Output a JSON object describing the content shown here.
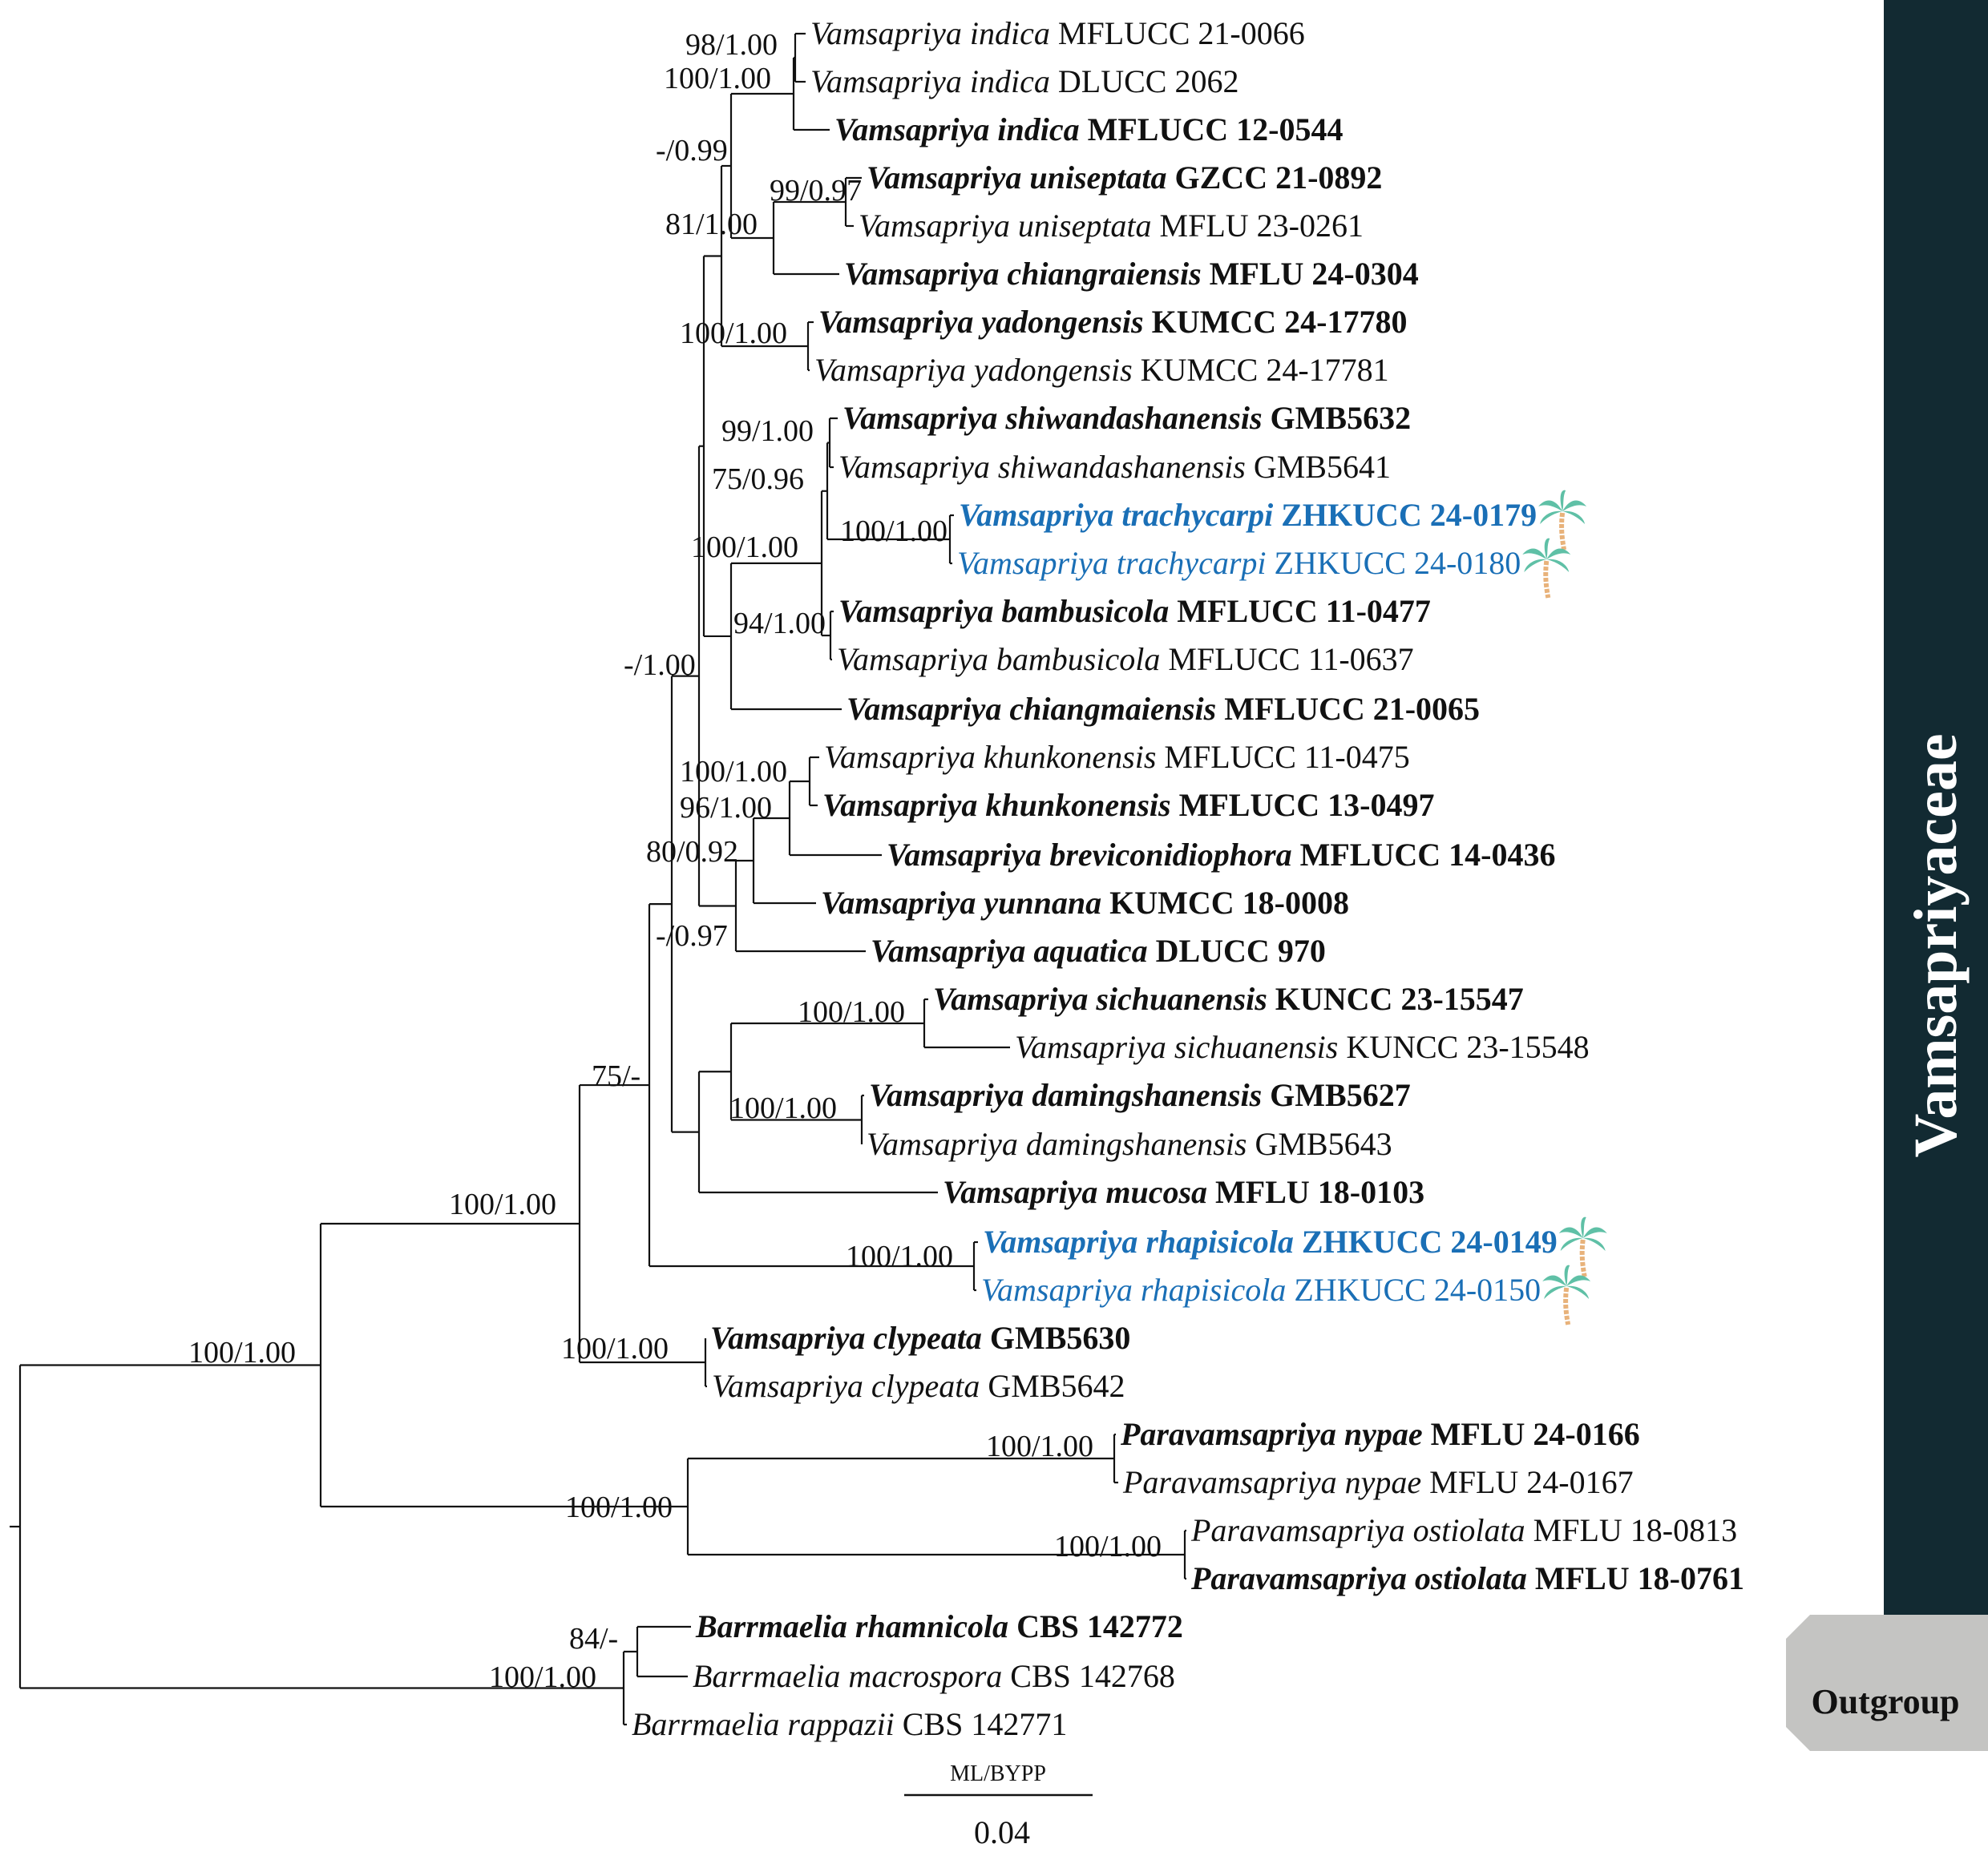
{
  "colors": {
    "branch": "#111111",
    "highlight": "#1a6fb6",
    "clade_bar": "#122a32",
    "outgroup_box": "#c4c4c2",
    "palm_leaf": "#5fc0a6",
    "palm_trunk": "#e8b27a"
  },
  "clades": {
    "family_label": "Vamsapriyaceae",
    "outgroup_label": "Outgroup"
  },
  "scale": {
    "title": "ML/BYPP",
    "value": "0.04"
  },
  "taxa": [
    {
      "species": "Vamsapriya indica",
      "code": "MFLUCC 21-0066",
      "bold": false,
      "highlight": false,
      "palm": false
    },
    {
      "species": "Vamsapriya indica",
      "code": "DLUCC 2062",
      "bold": false,
      "highlight": false,
      "palm": false
    },
    {
      "species": "Vamsapriya indica",
      "code": "MFLUCC 12-0544",
      "bold": true,
      "highlight": false,
      "palm": false
    },
    {
      "species": "Vamsapriya uniseptata",
      "code": "GZCC 21-0892",
      "bold": true,
      "highlight": false,
      "palm": false
    },
    {
      "species": "Vamsapriya uniseptata",
      "code": "MFLU 23-0261",
      "bold": false,
      "highlight": false,
      "palm": false
    },
    {
      "species": "Vamsapriya chiangraiensis",
      "code": "MFLU 24-0304",
      "bold": true,
      "highlight": false,
      "palm": false
    },
    {
      "species": "Vamsapriya yadongensis",
      "code": "KUMCC 24-17780",
      "bold": true,
      "highlight": false,
      "palm": false
    },
    {
      "species": "Vamsapriya yadongensis",
      "code": "KUMCC 24-17781",
      "bold": false,
      "highlight": false,
      "palm": false
    },
    {
      "species": "Vamsapriya shiwandashanensis",
      "code": "GMB5632",
      "bold": true,
      "highlight": false,
      "palm": false
    },
    {
      "species": "Vamsapriya shiwandashanensis",
      "code": "GMB5641",
      "bold": false,
      "highlight": false,
      "palm": false
    },
    {
      "species": "Vamsapriya trachycarpi",
      "code": "ZHKUCC 24-0179",
      "bold": true,
      "highlight": true,
      "palm": true
    },
    {
      "species": "Vamsapriya trachycarpi",
      "code": "ZHKUCC 24-0180",
      "bold": false,
      "highlight": true,
      "palm": true
    },
    {
      "species": "Vamsapriya bambusicola",
      "code": "MFLUCC 11-0477",
      "bold": true,
      "highlight": false,
      "palm": false
    },
    {
      "species": "Vamsapriya bambusicola",
      "code": "MFLUCC 11-0637",
      "bold": false,
      "highlight": false,
      "palm": false
    },
    {
      "species": "Vamsapriya chiangmaiensis",
      "code": "MFLUCC 21-0065",
      "bold": true,
      "highlight": false,
      "palm": false
    },
    {
      "species": "Vamsapriya khunkonensis",
      "code": "MFLUCC 11-0475",
      "bold": false,
      "highlight": false,
      "palm": false
    },
    {
      "species": "Vamsapriya khunkonensis",
      "code": "MFLUCC 13-0497",
      "bold": true,
      "highlight": false,
      "palm": false
    },
    {
      "species": "Vamsapriya breviconidiophora",
      "code": "MFLUCC 14-0436",
      "bold": true,
      "highlight": false,
      "palm": false
    },
    {
      "species": "Vamsapriya yunnana",
      "code": "KUMCC 18-0008",
      "bold": true,
      "highlight": false,
      "palm": false
    },
    {
      "species": "Vamsapriya aquatica",
      "code": "DLUCC 970",
      "bold": true,
      "highlight": false,
      "palm": false
    },
    {
      "species": "Vamsapriya sichuanensis",
      "code": "KUNCC 23-15547",
      "bold": true,
      "highlight": false,
      "palm": false
    },
    {
      "species": "Vamsapriya sichuanensis",
      "code": "KUNCC 23-15548",
      "bold": false,
      "highlight": false,
      "palm": false
    },
    {
      "species": "Vamsapriya damingshanensis",
      "code": "GMB5627",
      "bold": true,
      "highlight": false,
      "palm": false
    },
    {
      "species": "Vamsapriya damingshanensis",
      "code": "GMB5643",
      "bold": false,
      "highlight": false,
      "palm": false
    },
    {
      "species": "Vamsapriya mucosa",
      "code": "MFLU 18-0103",
      "bold": true,
      "highlight": false,
      "palm": false
    },
    {
      "species": "Vamsapriya rhapisicola",
      "code": "ZHKUCC 24-0149",
      "bold": true,
      "highlight": true,
      "palm": true
    },
    {
      "species": "Vamsapriya rhapisicola",
      "code": "ZHKUCC 24-0150",
      "bold": false,
      "highlight": true,
      "palm": true
    },
    {
      "species": "Vamsapriya clypeata",
      "code": "GMB5630",
      "bold": true,
      "highlight": false,
      "palm": false
    },
    {
      "species": "Vamsapriya clypeata",
      "code": "GMB5642",
      "bold": false,
      "highlight": false,
      "palm": false
    },
    {
      "species": "Paravamsapriya nypae",
      "code": "MFLU 24-0166",
      "bold": true,
      "highlight": false,
      "palm": false
    },
    {
      "species": "Paravamsapriya nypae",
      "code": "MFLU 24-0167",
      "bold": false,
      "highlight": false,
      "palm": false
    },
    {
      "species": "Paravamsapriya ostiolata",
      "code": "MFLU 18-0813",
      "bold": false,
      "highlight": false,
      "palm": false
    },
    {
      "species": "Paravamsapriya ostiolata",
      "code": "MFLU 18-0761",
      "bold": true,
      "highlight": false,
      "palm": false
    },
    {
      "species": "Barrmaelia rhamnicola",
      "code": "CBS 142772",
      "bold": true,
      "highlight": false,
      "palm": false
    },
    {
      "species": "Barrmaelia macrospora",
      "code": "CBS 142768",
      "bold": false,
      "highlight": false,
      "palm": false
    },
    {
      "species": "Barrmaelia rappazii",
      "code": "CBS 142771",
      "bold": false,
      "highlight": false,
      "palm": false
    }
  ],
  "supports": [
    "98/1.00",
    "100/1.00",
    "-/0.99",
    "99/0.97",
    "81/1.00",
    "100/1.00",
    "99/1.00",
    "75/0.96",
    "100/1.00",
    "100/1.00",
    "94/1.00",
    "-/1.00",
    "100/1.00",
    "96/1.00",
    "80/0.92",
    "-/0.97",
    "100/1.00",
    "100/1.00",
    "75/-",
    "100/1.00",
    "100/1.00",
    "100/1.00",
    "100/1.00",
    "100/1.00",
    "100/1.00",
    "100/1.00",
    "84/-",
    "100/1.00"
  ]
}
